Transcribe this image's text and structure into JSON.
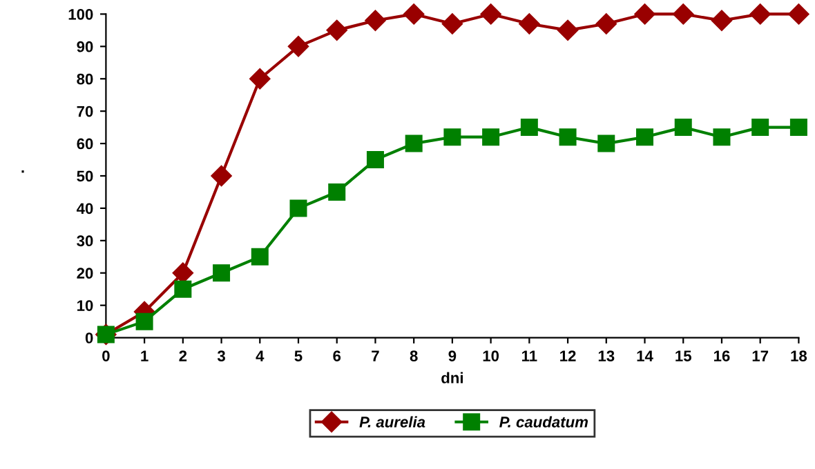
{
  "chart_data": {
    "type": "line",
    "xlabel": "dni",
    "ylabel": ".",
    "x": [
      0,
      1,
      2,
      3,
      4,
      5,
      6,
      7,
      8,
      9,
      10,
      11,
      12,
      13,
      14,
      15,
      16,
      17,
      18
    ],
    "xlim": [
      0,
      18
    ],
    "xticks": [
      0,
      1,
      2,
      3,
      4,
      5,
      6,
      7,
      8,
      9,
      10,
      11,
      12,
      13,
      14,
      15,
      16,
      17,
      18
    ],
    "ylim": [
      0,
      100
    ],
    "yticks": [
      0,
      10,
      20,
      30,
      40,
      50,
      60,
      70,
      80,
      90,
      100
    ],
    "grid": false,
    "legend": "bottom",
    "line_style": "solid",
    "series": [
      {
        "name": "P. aurelia",
        "color": "#990000",
        "marker": "diamond",
        "values": [
          1,
          8,
          20,
          50,
          80,
          90,
          95,
          98,
          100,
          97,
          100,
          97,
          95,
          97,
          100,
          100,
          98,
          100,
          100
        ]
      },
      {
        "name": "P. caudatum",
        "color": "#008000",
        "marker": "square",
        "values": [
          1,
          5,
          15,
          20,
          25,
          40,
          45,
          55,
          60,
          62,
          62,
          65,
          62,
          60,
          62,
          65,
          62,
          65,
          65
        ]
      }
    ]
  }
}
